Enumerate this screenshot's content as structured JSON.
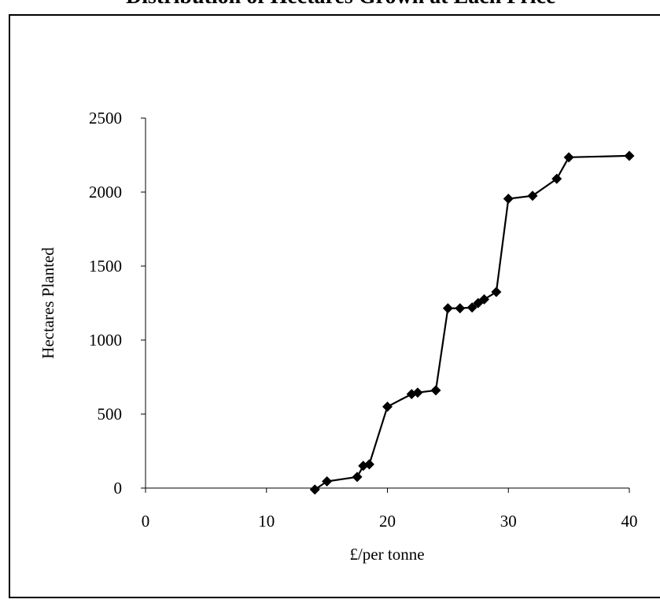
{
  "chart_data": {
    "type": "line",
    "title": "Distribution of Hectares Grown at Each Price",
    "xlabel": "£/per tonne",
    "ylabel": "Hectares Planted",
    "xlim": [
      0,
      40
    ],
    "ylim": [
      0,
      2500
    ],
    "xticks": [
      0,
      10,
      20,
      30,
      40
    ],
    "yticks": [
      0,
      500,
      1000,
      1500,
      2000,
      2500
    ],
    "x_tick_labels": [
      "0",
      "10",
      "20",
      "30",
      "40"
    ],
    "y_tick_labels": [
      "0",
      "500",
      "1000",
      "1500",
      "2000",
      "2500"
    ],
    "grid": false,
    "marker": "diamond",
    "series": [
      {
        "x": [
          14,
          15,
          17.5,
          18,
          18.5,
          20,
          22,
          22.5,
          24,
          25,
          26,
          27,
          27.5,
          28,
          29,
          30,
          32,
          34,
          35,
          40
        ],
        "y": [
          -10,
          45,
          75,
          150,
          160,
          550,
          635,
          645,
          660,
          1215,
          1215,
          1220,
          1250,
          1275,
          1325,
          1955,
          1975,
          2090,
          2235,
          2245
        ]
      }
    ]
  }
}
